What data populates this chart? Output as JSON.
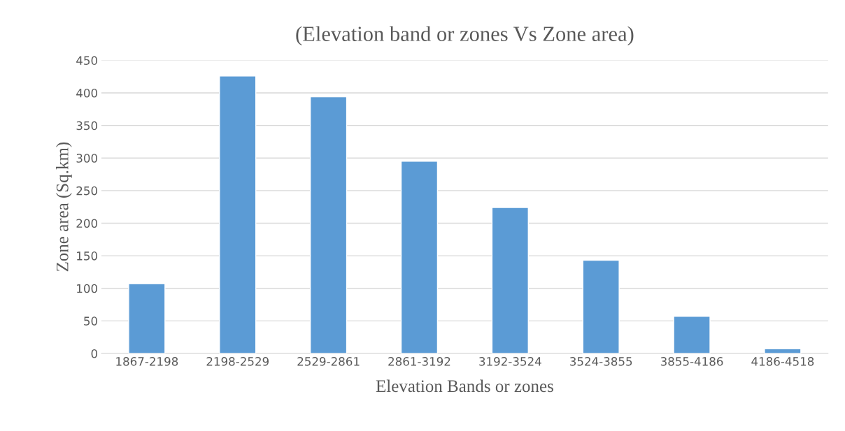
{
  "chart_data": {
    "type": "bar",
    "title": "(Elevation band or zones Vs Zone area)",
    "xlabel": "Elevation Bands or zones",
    "ylabel": "Zone area (Sq.km)",
    "categories": [
      "1867-2198",
      "2198-2529",
      "2529-2861",
      "2861-3192",
      "3192-3524",
      "3524-3855",
      "3855-4186",
      "4186-4518"
    ],
    "values": [
      107,
      426,
      394,
      295,
      224,
      143,
      57,
      7
    ],
    "color": "#5b9bd5",
    "ylim": [
      0,
      450
    ],
    "yticks": [
      0,
      50,
      100,
      150,
      200,
      250,
      300,
      350,
      400,
      450
    ],
    "grid": "y"
  }
}
